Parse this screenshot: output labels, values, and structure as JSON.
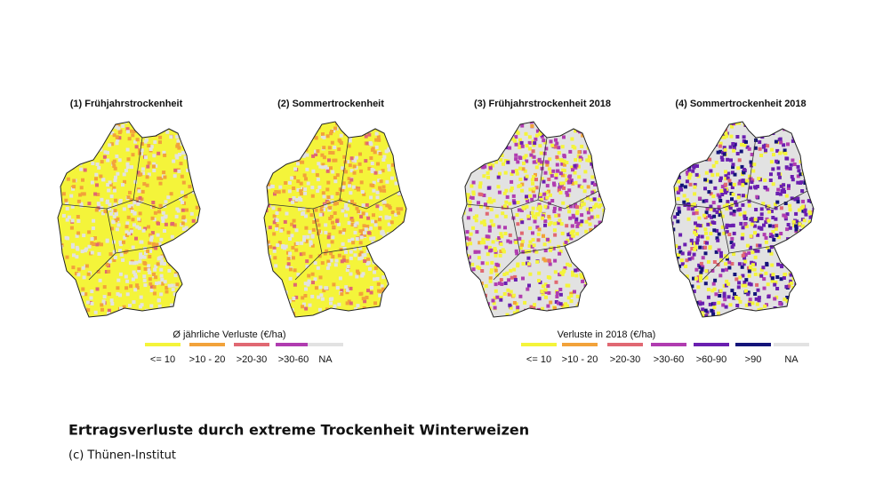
{
  "panels": [
    {
      "title": "(1) Frühjahrstrockenheit"
    },
    {
      "title": "(2) Sommertrockenheit"
    },
    {
      "title": "(3) Frühjahrstrockenheit 2018"
    },
    {
      "title": "(4) Sommertrockenheit 2018"
    }
  ],
  "legends": [
    {
      "title": "Ø jährliche Verluste (€/ha)",
      "items": [
        {
          "label": "<= 10",
          "color": "#f4f43a"
        },
        {
          "label": ">10 - 20",
          "color": "#f2a23a"
        },
        {
          "label": ">20-30",
          "color": "#e06872"
        },
        {
          "label": ">30-60",
          "color": "#b03cb0"
        },
        {
          "label": "NA",
          "color": "#e2e2e2"
        }
      ]
    },
    {
      "title": "Verluste in 2018 (€/ha)",
      "items": [
        {
          "label": "<= 10",
          "color": "#f4f43a"
        },
        {
          "label": ">10 - 20",
          "color": "#f2a23a"
        },
        {
          "label": ">20-30",
          "color": "#e06872"
        },
        {
          "label": ">30-60",
          "color": "#b03cb0"
        },
        {
          "label": ">60-90",
          "color": "#6a1fb0"
        },
        {
          "label": ">90",
          "color": "#14147a"
        },
        {
          "label": "NA",
          "color": "#e2e2e2"
        }
      ]
    }
  ],
  "caption": "Ertragsverluste durch extreme Trockenheit Winterweizen",
  "credit": "(c) Thünen-Institut"
}
